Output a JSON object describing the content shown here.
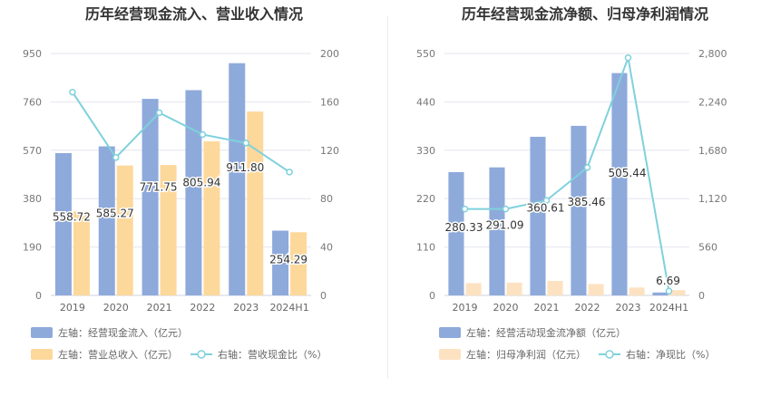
{
  "chart_data": [
    {
      "type": "bar+line",
      "title": "历年经营现金流入、营业收入情况",
      "categories": [
        "2019",
        "2020",
        "2021",
        "2022",
        "2023",
        "2024H1"
      ],
      "left_axis": {
        "ylim": [
          0,
          950
        ],
        "ticks": [
          "0",
          "190",
          "380",
          "570",
          "760",
          "950"
        ]
      },
      "right_axis": {
        "ylim": [
          0,
          200
        ],
        "ticks": [
          "0",
          "40",
          "80",
          "120",
          "160",
          "200"
        ]
      },
      "grid": true,
      "legend_position": "bottom-left",
      "series": [
        {
          "name": "左轴：经营现金流入（亿元）",
          "kind": "bar",
          "axis": "left",
          "color": "#8eaadb",
          "values": [
            558.72,
            585.27,
            771.75,
            805.94,
            911.8,
            254.29
          ],
          "labels": [
            "558.72",
            "585.27",
            "771.75",
            "805.94",
            "911.80",
            "254.29"
          ]
        },
        {
          "name": "左轴：营业总收入（亿元）",
          "kind": "bar",
          "axis": "left",
          "color": "#fdd89b",
          "values": [
            330,
            510,
            512,
            605,
            722,
            248
          ]
        },
        {
          "name": "右轴：营收现金比（%）",
          "kind": "line",
          "axis": "right",
          "color": "#7fd1dc",
          "values": [
            168,
            114,
            151,
            133,
            126,
            102
          ]
        }
      ]
    },
    {
      "type": "bar+line",
      "title": "历年经营现金流净额、归母净利润情况",
      "categories": [
        "2019",
        "2020",
        "2021",
        "2022",
        "2023",
        "2024H1"
      ],
      "left_axis": {
        "ylim": [
          0,
          550
        ],
        "ticks": [
          "0",
          "110",
          "220",
          "330",
          "440",
          "550"
        ]
      },
      "right_axis": {
        "ylim": [
          0,
          2800
        ],
        "ticks": [
          "0",
          "560",
          "1,120",
          "1,680",
          "2,240",
          "2,800"
        ]
      },
      "grid": true,
      "legend_position": "bottom-left",
      "series": [
        {
          "name": "左轴：经营活动现金流净额（亿元）",
          "kind": "bar",
          "axis": "left",
          "color": "#8eaadb",
          "values": [
            280.33,
            291.09,
            360.61,
            385.46,
            505.44,
            6.69
          ],
          "labels": [
            "280.33",
            "291.09",
            "360.61",
            "385.46",
            "505.44",
            "6.69"
          ]
        },
        {
          "name": "左轴：归母净利润（亿元）",
          "kind": "bar",
          "axis": "left",
          "color": "#fde2c2",
          "values": [
            28,
            29,
            33,
            26,
            18,
            12
          ]
        },
        {
          "name": "右轴：净现比（%）",
          "kind": "line",
          "axis": "right",
          "color": "#7fd1dc",
          "values": [
            1000,
            1000,
            1100,
            1480,
            2750,
            50
          ]
        }
      ]
    }
  ]
}
